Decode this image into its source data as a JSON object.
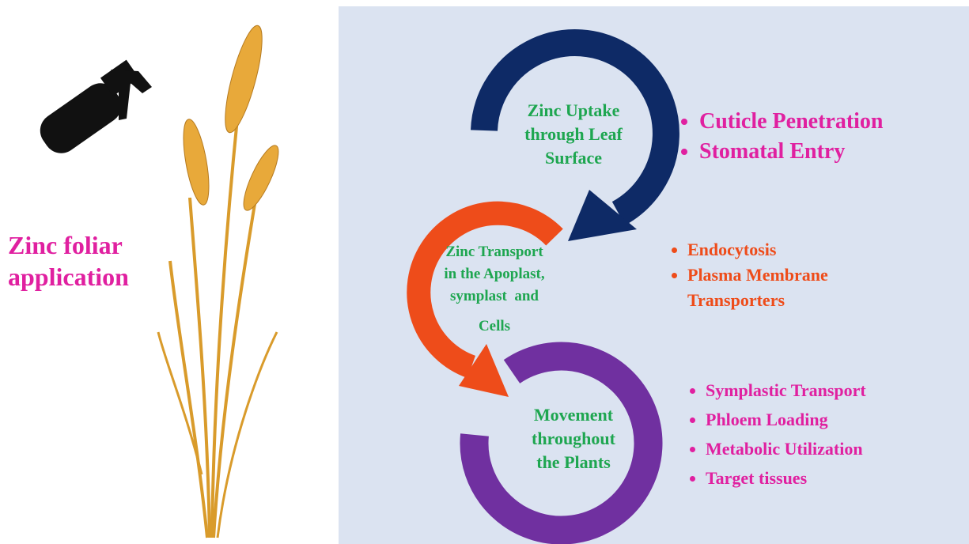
{
  "title": "Zinc foliar application",
  "stages": [
    {
      "label": [
        "Zinc Uptake",
        "through Leaf",
        "Surface"
      ],
      "items": [
        "Cuticle Penetration",
        "Stomatal Entry"
      ]
    },
    {
      "label": [
        "Zinc Transport",
        "in the Apoplast,",
        "symplast  and",
        "Cells"
      ],
      "items": [
        "Endocytosis",
        "Plasma Membrane Transporters"
      ]
    },
    {
      "label": [
        "Movement",
        "throughout",
        "the Plants"
      ],
      "items": [
        "Symplastic Transport",
        "Phloem Loading",
        "Metabolic Utilization",
        "Target tissues"
      ]
    }
  ]
}
